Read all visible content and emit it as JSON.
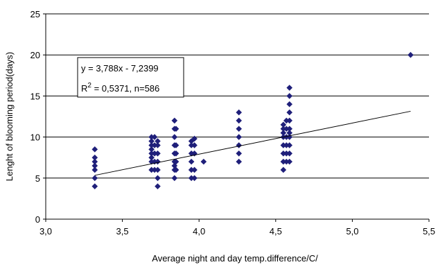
{
  "chart_data": {
    "type": "scatter",
    "title": "",
    "xlabel": "Average night and day temp.difference/C/",
    "ylabel": "Lenght of blooming period(days)",
    "xlim": [
      3.0,
      5.5
    ],
    "ylim": [
      0,
      25
    ],
    "x_ticks": [
      "3,0",
      "3,5",
      "4,0",
      "4,5",
      "5,0",
      "5,5"
    ],
    "y_ticks": [
      "0",
      "5",
      "10",
      "15",
      "20",
      "25"
    ],
    "grid": "horizontal",
    "legend": "none",
    "marker": "diamond",
    "marker_color": "#1f1f7a",
    "series": [
      {
        "points": [
          [
            3.32,
            4
          ],
          [
            3.32,
            5
          ],
          [
            3.32,
            6
          ],
          [
            3.32,
            6.5
          ],
          [
            3.32,
            7
          ],
          [
            3.32,
            7.5
          ],
          [
            3.32,
            8.5
          ],
          [
            3.69,
            6
          ],
          [
            3.69,
            7
          ],
          [
            3.69,
            7.5
          ],
          [
            3.69,
            8
          ],
          [
            3.69,
            8.5
          ],
          [
            3.69,
            9
          ],
          [
            3.69,
            9.5
          ],
          [
            3.69,
            10
          ],
          [
            3.71,
            6
          ],
          [
            3.71,
            7
          ],
          [
            3.71,
            8
          ],
          [
            3.71,
            9
          ],
          [
            3.71,
            10
          ],
          [
            3.73,
            4
          ],
          [
            3.73,
            5
          ],
          [
            3.73,
            6
          ],
          [
            3.73,
            7
          ],
          [
            3.73,
            8
          ],
          [
            3.73,
            9
          ],
          [
            3.73,
            9.5
          ],
          [
            3.84,
            5
          ],
          [
            3.84,
            6
          ],
          [
            3.84,
            6.5
          ],
          [
            3.84,
            7
          ],
          [
            3.84,
            8
          ],
          [
            3.84,
            9
          ],
          [
            3.84,
            10
          ],
          [
            3.84,
            11
          ],
          [
            3.84,
            12
          ],
          [
            3.85,
            6
          ],
          [
            3.85,
            7
          ],
          [
            3.85,
            8
          ],
          [
            3.85,
            9
          ],
          [
            3.85,
            11
          ],
          [
            3.95,
            5
          ],
          [
            3.95,
            6
          ],
          [
            3.95,
            7
          ],
          [
            3.95,
            8
          ],
          [
            3.95,
            9
          ],
          [
            3.95,
            9.5
          ],
          [
            3.97,
            5
          ],
          [
            3.97,
            6
          ],
          [
            3.97,
            8
          ],
          [
            3.97,
            9
          ],
          [
            3.97,
            9.8
          ],
          [
            4.03,
            7
          ],
          [
            4.26,
            7
          ],
          [
            4.26,
            8
          ],
          [
            4.26,
            9
          ],
          [
            4.26,
            10
          ],
          [
            4.26,
            11
          ],
          [
            4.26,
            12
          ],
          [
            4.26,
            13
          ],
          [
            4.55,
            6
          ],
          [
            4.55,
            7
          ],
          [
            4.55,
            8
          ],
          [
            4.55,
            9
          ],
          [
            4.55,
            10
          ],
          [
            4.55,
            10.5
          ],
          [
            4.55,
            11
          ],
          [
            4.55,
            11.5
          ],
          [
            4.57,
            7
          ],
          [
            4.57,
            8
          ],
          [
            4.57,
            9
          ],
          [
            4.57,
            10
          ],
          [
            4.57,
            11
          ],
          [
            4.57,
            12
          ],
          [
            4.59,
            7
          ],
          [
            4.59,
            8
          ],
          [
            4.59,
            9
          ],
          [
            4.59,
            10
          ],
          [
            4.59,
            10.5
          ],
          [
            4.59,
            11
          ],
          [
            4.59,
            12
          ],
          [
            4.59,
            13
          ],
          [
            4.59,
            14
          ],
          [
            4.59,
            15
          ],
          [
            4.59,
            16
          ],
          [
            5.38,
            20
          ]
        ]
      }
    ],
    "trendline": {
      "equation": "y = 3,788x - 7,2399",
      "r2_label": "R",
      "r2_sup": "2",
      "r2_value": " = 0,5371, n=586",
      "slope": 3.788,
      "intercept": -7.2399,
      "x_from": 3.32,
      "x_to": 5.38
    }
  }
}
